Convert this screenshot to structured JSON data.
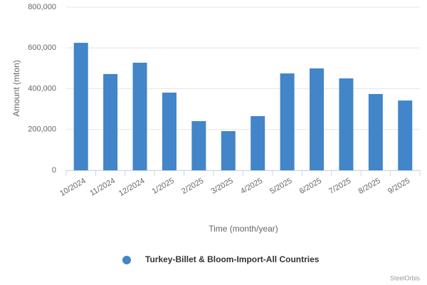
{
  "chart_data": {
    "type": "bar",
    "y_label": "Amount (mton)",
    "x_label": "Time (month/year)",
    "categories": [
      "10/2024",
      "11/2024",
      "12/2024",
      "1/2025",
      "2/2025",
      "3/2025",
      "4/2025",
      "5/2025",
      "6/2025",
      "7/2025",
      "8/2025",
      "9/2025"
    ],
    "series": [
      {
        "name": "Turkey-Billet & Bloom-Import-All Countries",
        "color": "#4285c8",
        "values": [
          625000,
          472000,
          527500,
          381000,
          241000,
          192000,
          265500,
          475000,
          499500,
          450500,
          374000,
          342000
        ]
      }
    ],
    "ylim": [
      0,
      800000
    ],
    "yticks": [
      0,
      {
        "value": 200000,
        "label": "200,000"
      },
      {
        "value": 400000,
        "label": "400,000"
      },
      {
        "value": 600000,
        "label": "600,000"
      },
      {
        "value": 800000,
        "label": "800,000"
      }
    ],
    "grid": true,
    "credit": "SteelOrbis"
  }
}
